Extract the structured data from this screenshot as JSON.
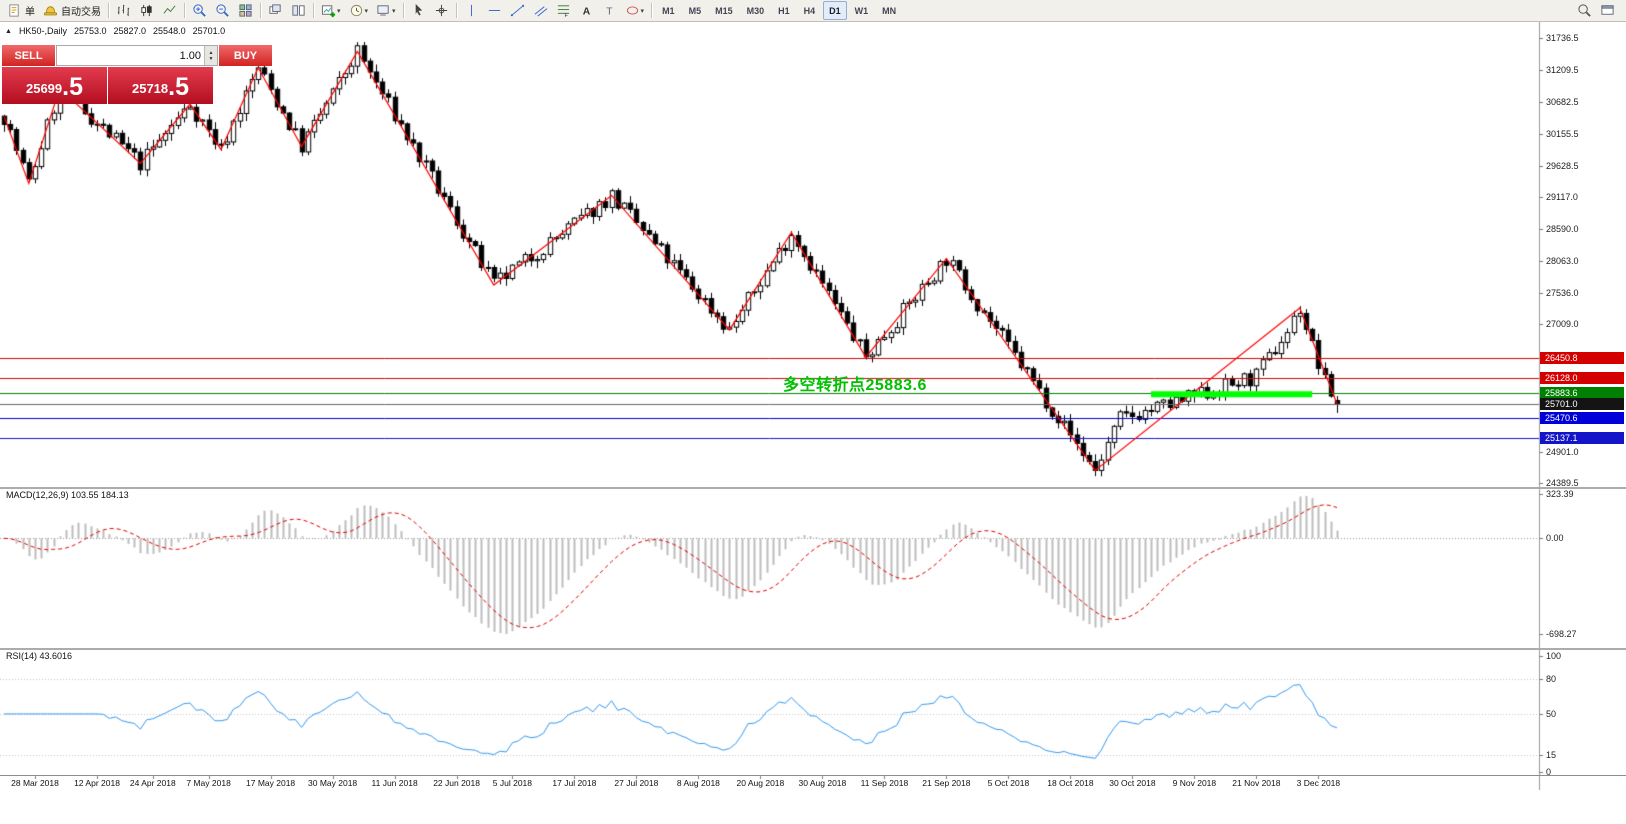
{
  "toolbar": {
    "groups": [
      {
        "items": [
          {
            "name": "new-order",
            "icon": "new-order",
            "label": "单"
          },
          {
            "name": "autotrading",
            "icon": "autotrade-hat",
            "label": "自动交易"
          }
        ]
      },
      {
        "items": [
          {
            "name": "bar-chart",
            "icon": "chart-bars"
          },
          {
            "name": "candlestick-chart",
            "icon": "chart-candles"
          },
          {
            "name": "line-chart",
            "icon": "chart-line"
          }
        ]
      },
      {
        "items": [
          {
            "name": "zoom-in",
            "icon": "zoom-in"
          },
          {
            "name": "zoom-out",
            "icon": "zoom-out"
          },
          {
            "name": "tile-windows",
            "icon": "tile-windows"
          }
        ]
      },
      {
        "items": [
          {
            "name": "auto-arrange",
            "icon": "arrange-windows"
          },
          {
            "name": "tile-vertically",
            "icon": "tile-vertical"
          }
        ]
      },
      {
        "items": [
          {
            "name": "new-chart",
            "icon": "new-chart",
            "dropdown": true
          },
          {
            "name": "periodicity",
            "icon": "clock",
            "dropdown": true
          },
          {
            "name": "templates",
            "icon": "template",
            "dropdown": true
          }
        ]
      },
      {
        "items": [
          {
            "name": "cursor",
            "icon": "cursor"
          },
          {
            "name": "crosshair",
            "icon": "crosshair"
          }
        ]
      },
      {
        "items": [
          {
            "name": "vertical-line",
            "icon": "vline"
          },
          {
            "name": "horizontal-line",
            "icon": "hline"
          },
          {
            "name": "trendline",
            "icon": "trendline"
          },
          {
            "name": "equidistant-channel",
            "icon": "channel"
          },
          {
            "name": "fibonacci-retracement",
            "icon": "fibo"
          },
          {
            "name": "text",
            "icon": "text-a"
          },
          {
            "name": "text-label",
            "icon": "label-t"
          },
          {
            "name": "arrows",
            "icon": "shapes",
            "dropdown": true
          }
        ]
      }
    ],
    "timeframes": [
      "M1",
      "M5",
      "M15",
      "M30",
      "H1",
      "H4",
      "D1",
      "W1",
      "MN"
    ],
    "active_timeframe": "D1",
    "right_items": [
      {
        "name": "symbol-search",
        "icon": "search"
      },
      {
        "name": "popup-prices",
        "icon": "window"
      }
    ]
  },
  "chart_header": {
    "symbol_period": "HK50-,Daily",
    "open": "25753.0",
    "high": "25827.0",
    "low": "25548.0",
    "close": "25701.0"
  },
  "one_click": {
    "sell_label": "SELL",
    "buy_label": "BUY",
    "volume": "1.00",
    "sell_price": {
      "main": "25699",
      "big": ".5"
    },
    "buy_price": {
      "main": "25718",
      "big": ".5"
    }
  },
  "annotation": {
    "text": "多空转折点25883.6",
    "color": "#00c000"
  },
  "price_axis": {
    "labels": [
      "31736.5",
      "31209.5",
      "30682.5",
      "30155.5",
      "29628.5",
      "29117.0",
      "28590.0",
      "28063.0",
      "27536.0",
      "27009.0",
      "24901.0",
      "24389.5"
    ]
  },
  "badges": [
    {
      "text": "26450.8",
      "price": 26450.8,
      "color": "#d40000"
    },
    {
      "text": "26128.0",
      "price": 26128.0,
      "color": "#d40000"
    },
    {
      "text": "25883.6",
      "price": 25883.6,
      "color": "#008000"
    },
    {
      "text": "25701.0",
      "price": 25701.0,
      "color": "#141414"
    },
    {
      "text": "25470.6",
      "price": 25470.6,
      "color": "#0000d8"
    },
    {
      "text": "25137.1",
      "price": 25137.1,
      "color": "#1414c8"
    }
  ],
  "macd_panel": {
    "label": "MACD(12,26,9) 103.55 184.13",
    "axis": [
      {
        "text": "323.39",
        "v": 323.39
      },
      {
        "text": "0.00",
        "v": 0
      },
      {
        "text": "-698.27",
        "v": -698.27
      }
    ]
  },
  "rsi_panel": {
    "label": "RSI(14) 43.6016",
    "axis": [
      {
        "text": "100",
        "v": 100
      },
      {
        "text": "80",
        "v": 80
      },
      {
        "text": "50",
        "v": 50
      },
      {
        "text": "15",
        "v": 15
      },
      {
        "text": "0",
        "v": 0
      }
    ],
    "levels": [
      80,
      50,
      15
    ]
  },
  "date_axis": {
    "labels": [
      {
        "label": "28 Mar 2018",
        "i": 5
      },
      {
        "label": "12 Apr 2018",
        "i": 15
      },
      {
        "label": "24 Apr 2018",
        "i": 24
      },
      {
        "label": "7 May 2018",
        "i": 33
      },
      {
        "label": "17 May 2018",
        "i": 43
      },
      {
        "label": "30 May 2018",
        "i": 53
      },
      {
        "label": "11 Jun 2018",
        "i": 63
      },
      {
        "label": "22 Jun 2018",
        "i": 73
      },
      {
        "label": "5 Jul 2018",
        "i": 82
      },
      {
        "label": "17 Jul 2018",
        "i": 92
      },
      {
        "label": "27 Jul 2018",
        "i": 102
      },
      {
        "label": "8 Aug 2018",
        "i": 112
      },
      {
        "label": "20 Aug 2018",
        "i": 122
      },
      {
        "label": "30 Aug 2018",
        "i": 132
      },
      {
        "label": "11 Sep 2018",
        "i": 142
      },
      {
        "label": "21 Sep 2018",
        "i": 152
      },
      {
        "label": "5 Oct 2018",
        "i": 162
      },
      {
        "label": "18 Oct 2018",
        "i": 172
      },
      {
        "label": "30 Oct 2018",
        "i": 182
      },
      {
        "label": "9 Nov 2018",
        "i": 192
      },
      {
        "label": "21 Nov 2018",
        "i": 202
      },
      {
        "label": "3 Dec 2018",
        "i": 212
      }
    ]
  },
  "chart_data": {
    "type": "candlestick",
    "symbol": "HK50-",
    "period": "Daily",
    "ylim": [
      24325,
      32005
    ],
    "bars_count": 216,
    "last_bar": {
      "open": 25753.0,
      "high": 25827.0,
      "low": 25548.0,
      "close": 25701.0
    },
    "zigzag_points": [
      [
        0,
        30450
      ],
      [
        4,
        29340
      ],
      [
        9,
        30910
      ],
      [
        22,
        29670
      ],
      [
        30,
        30650
      ],
      [
        35,
        29900
      ],
      [
        41,
        31250
      ],
      [
        48,
        29950
      ],
      [
        57,
        31520
      ],
      [
        79,
        27660
      ],
      [
        98,
        29140
      ],
      [
        117,
        26920
      ],
      [
        127,
        28530
      ],
      [
        139,
        26470
      ],
      [
        152,
        28100
      ],
      [
        176,
        24600
      ],
      [
        209,
        27280
      ],
      [
        215,
        25700
      ]
    ],
    "price_path": [
      [
        0,
        30450
      ],
      [
        4,
        29340
      ],
      [
        9,
        30910
      ],
      [
        22,
        29670
      ],
      [
        30,
        30650
      ],
      [
        35,
        29900
      ],
      [
        41,
        31250
      ],
      [
        48,
        29950
      ],
      [
        57,
        31520
      ],
      [
        79,
        27660
      ],
      [
        98,
        29140
      ],
      [
        117,
        26920
      ],
      [
        127,
        28530
      ],
      [
        139,
        26470
      ],
      [
        152,
        28100
      ],
      [
        176,
        24600
      ],
      [
        180,
        25450
      ],
      [
        190,
        25750
      ],
      [
        202,
        26150
      ],
      [
        207,
        26900
      ],
      [
        209,
        27280
      ],
      [
        211,
        26650
      ],
      [
        213,
        26050
      ],
      [
        215,
        25700
      ]
    ],
    "hlines": [
      {
        "price": 26450.8,
        "color": "#d40000",
        "width": 1
      },
      {
        "price": 26128.0,
        "color": "#d40000",
        "width": 1
      },
      {
        "price": 25883.6,
        "color": "#008000",
        "width": 1
      },
      {
        "price": 25701.0,
        "color": "#666666",
        "width": 1
      },
      {
        "price": 25470.6,
        "color": "#0000d8",
        "width": 1
      },
      {
        "price": 25137.1,
        "color": "#1414c8",
        "width": 1
      }
    ],
    "green_segment": {
      "price": 25855,
      "from_bar": 185,
      "to_bar": 211,
      "color": "#00ff00",
      "width": 6
    },
    "indicators": [
      {
        "name": "MACD",
        "params": [
          12,
          26,
          9
        ],
        "values": [
          103.55,
          184.13
        ],
        "range": [
          -698.27,
          323.39
        ],
        "histogram_color": "#bdbdbd",
        "signal_color": "#e00000"
      },
      {
        "name": "RSI",
        "params": [
          14
        ],
        "value": 43.6016,
        "line_color": "#3399ee",
        "range": [
          0,
          100
        ]
      }
    ],
    "zigzag_color": "#ff0000"
  }
}
